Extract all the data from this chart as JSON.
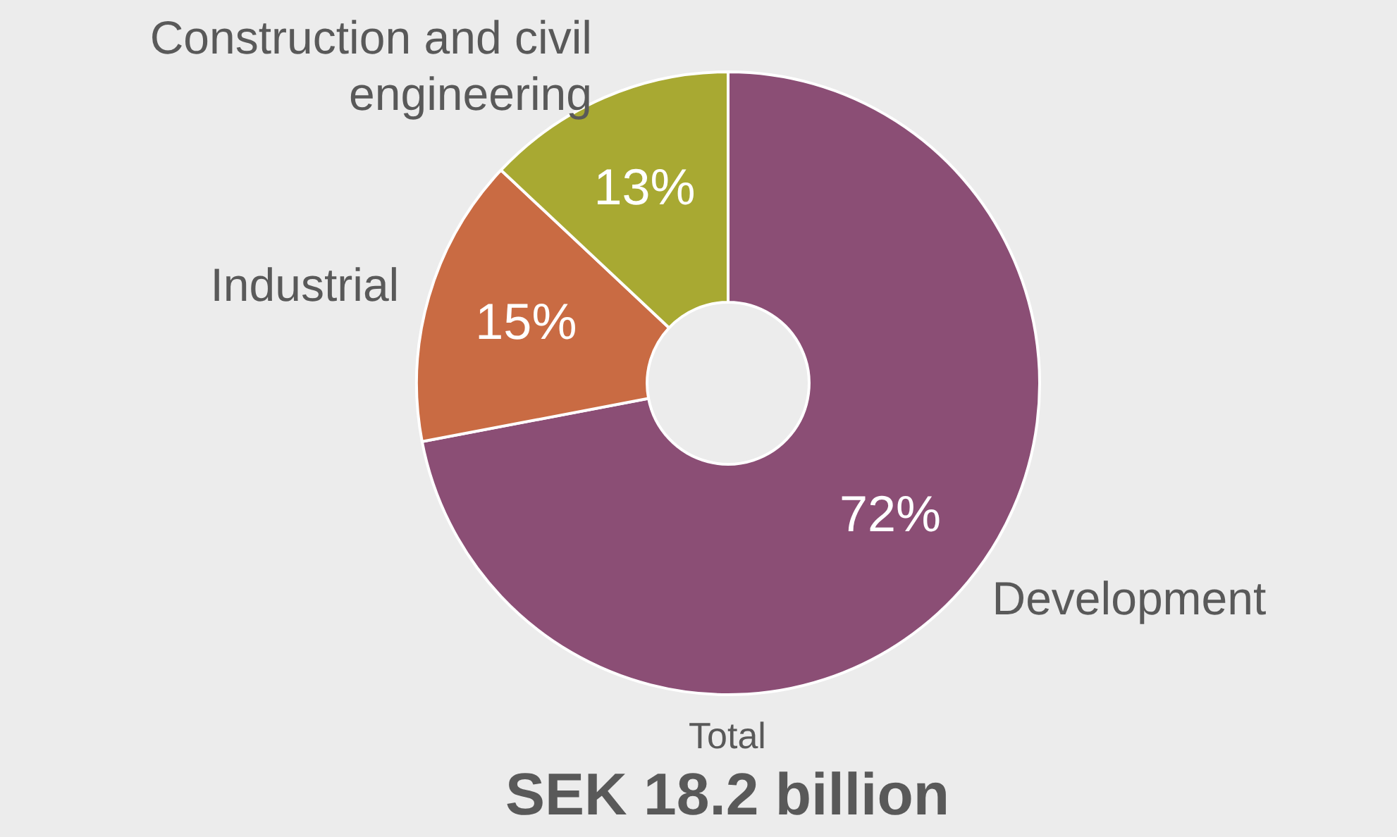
{
  "chart_data": {
    "type": "donut",
    "title": "SEK 18.2 billion",
    "subtitle": "Total",
    "categories": [
      "Development",
      "Industrial",
      "Construction and civil engineering"
    ],
    "values": [
      72,
      15,
      13
    ],
    "colors": [
      "#8b4e75",
      "#c96b43",
      "#a8a932"
    ],
    "value_labels": [
      "72%",
      "15%",
      "13%"
    ],
    "legend": false
  }
}
